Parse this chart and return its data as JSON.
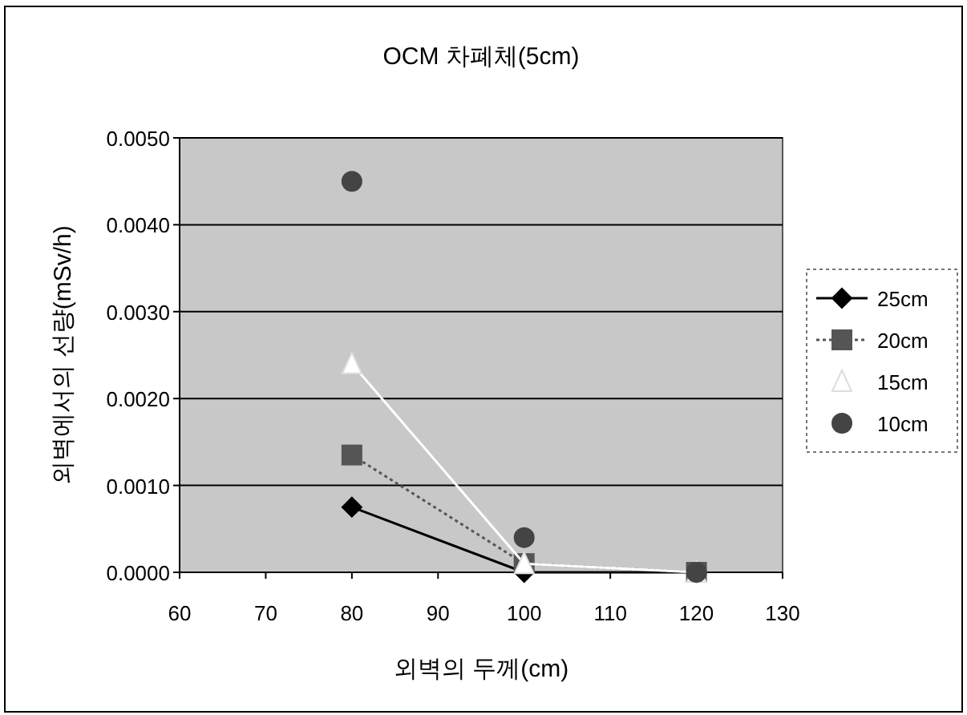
{
  "chart_data": {
    "type": "line",
    "title": "OCM 차폐체(5cm)",
    "xlabel": "외벽의 두께(cm)",
    "ylabel": "외벽에서의 선량(mSv/h)",
    "x": [
      80,
      100,
      120
    ],
    "series": [
      {
        "name": "25cm",
        "color": "#000000",
        "marker": "diamond",
        "line_style": "solid",
        "values": [
          0.00075,
          0.0,
          0.0
        ]
      },
      {
        "name": "20cm",
        "color": "#555555",
        "marker": "square",
        "line_style": "dotted",
        "values": [
          0.00135,
          0.0001,
          0.0
        ]
      },
      {
        "name": "15cm",
        "color": "#ffffff",
        "marker": "triangle",
        "line_style": "solid",
        "values": [
          0.0024,
          0.0001,
          0.0
        ]
      },
      {
        "name": "10cm",
        "type": "scatter",
        "color": "#444444",
        "marker": "circle",
        "values": [
          0.0045,
          0.0004,
          0.0
        ]
      }
    ],
    "xlim": [
      60,
      130
    ],
    "xticks": [
      60,
      70,
      80,
      90,
      100,
      110,
      120,
      130
    ],
    "ylim": [
      0,
      0.005
    ],
    "yticks": [
      {
        "value": 0,
        "label": "0.0000"
      },
      {
        "value": 0.001,
        "label": "0.0010"
      },
      {
        "value": 0.002,
        "label": "0.0020"
      },
      {
        "value": 0.003,
        "label": "0.0030"
      },
      {
        "value": 0.004,
        "label": "0.0040"
      },
      {
        "value": 0.005,
        "label": "0.0050"
      }
    ],
    "grid": "y",
    "legend": "right"
  }
}
